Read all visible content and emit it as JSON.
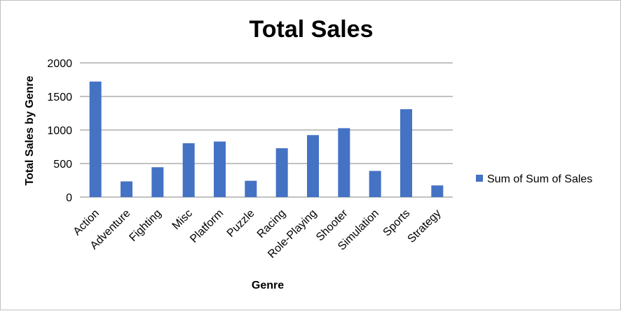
{
  "chart_data": {
    "type": "bar",
    "title": "Total Sales",
    "xlabel": "Genre",
    "ylabel": "Total Sales by Genre",
    "categories": [
      "Action",
      "Adventure",
      "Fighting",
      "Misc",
      "Platform",
      "Puzzle",
      "Racing",
      "Role-Playing",
      "Shooter",
      "Simulation",
      "Sports",
      "Strategy"
    ],
    "series": [
      {
        "name": "Sum of Sum of Sales",
        "values": [
          1722,
          234,
          445,
          803,
          828,
          243,
          728,
          924,
          1027,
          390,
          1310,
          174
        ],
        "color": "#4472c4"
      }
    ],
    "ylim": [
      0,
      2000
    ],
    "yticks": [
      0,
      500,
      1000,
      1500,
      2000
    ],
    "grid": true,
    "legend_position": "right"
  }
}
